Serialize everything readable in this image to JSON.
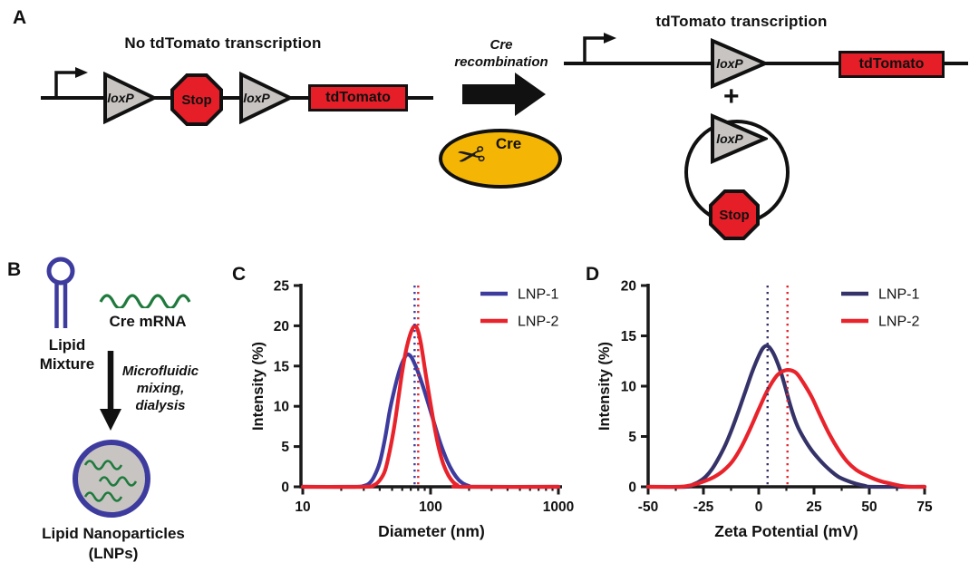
{
  "figure": {
    "panel_a": {
      "label": "A",
      "left_title": "No tdTomato transcription",
      "right_title": "tdTomato transcription",
      "cre_line1": "Cre",
      "cre_line2": "recombination",
      "cre_badge": "Cre",
      "loxp_label": "loxP",
      "stop_label": "Stop",
      "tdtomato_label": "tdTomato",
      "plus_sign": "+"
    },
    "panel_b": {
      "label": "B",
      "lipid_line1": "Lipid",
      "lipid_line2": "Mixture",
      "mrna_label": "Cre mRNA",
      "process_line1": "Microfluidic",
      "process_line2": "mixing,",
      "process_line3": "dialysis",
      "lnp_line1": "Lipid  Nanoparticles",
      "lnp_line2": "(LNPs)"
    },
    "panel_c": {
      "label": "C"
    },
    "panel_d": {
      "label": "D"
    }
  },
  "colors": {
    "axis": "#1a1a1a",
    "lnp1_c": "#3D3C9E",
    "lnp2_c": "#E8232B",
    "lnp1_d": "#343268",
    "lnp2_d": "#E8232B",
    "yellow": "#F4B505",
    "gray_fill": "#C8C4C2",
    "red_fill": "#E61E28",
    "green": "#1F7A3D",
    "lipid_blue": "#3D3C9E"
  },
  "chart_data": [
    {
      "panel": "C",
      "type": "line",
      "xlabel": "Diameter (nm)",
      "ylabel": "Intensity (%)",
      "x_scale": "log",
      "xlim": [
        10,
        1000
      ],
      "ylim": [
        0,
        25
      ],
      "y_ticks": [
        0,
        5,
        10,
        15,
        20,
        25
      ],
      "x_ticks": [
        10,
        100,
        1000
      ],
      "x_minor_ticks": [
        20,
        30,
        40,
        50,
        60,
        70,
        80,
        90,
        200,
        300,
        400,
        500,
        600,
        700,
        800,
        900
      ],
      "grid": false,
      "legend_position": "upper-right",
      "vlines": [
        {
          "x": 75,
          "color": "#3D3C9E",
          "style": "dotted"
        },
        {
          "x": 80,
          "color": "#E8232B",
          "style": "dotted"
        }
      ],
      "series": [
        {
          "name": "LNP-1",
          "color": "#3D3C9E",
          "points": [
            [
              10,
              0
            ],
            [
              25,
              0
            ],
            [
              30,
              0.1
            ],
            [
              33,
              0.4
            ],
            [
              36,
              1.2
            ],
            [
              40,
              3
            ],
            [
              44,
              6
            ],
            [
              48,
              9.5
            ],
            [
              52,
              12
            ],
            [
              56,
              14
            ],
            [
              60,
              15.4
            ],
            [
              65,
              16.4
            ],
            [
              70,
              16.2
            ],
            [
              75,
              15.3
            ],
            [
              80,
              14.2
            ],
            [
              85,
              13
            ],
            [
              90,
              11.8
            ],
            [
              100,
              9.4
            ],
            [
              110,
              7.2
            ],
            [
              120,
              5.3
            ],
            [
              135,
              3.2
            ],
            [
              150,
              1.8
            ],
            [
              165,
              0.9
            ],
            [
              180,
              0.4
            ],
            [
              200,
              0.1
            ],
            [
              220,
              0
            ],
            [
              1000,
              0
            ]
          ]
        },
        {
          "name": "LNP-2",
          "color": "#E8232B",
          "points": [
            [
              10,
              0
            ],
            [
              30,
              0
            ],
            [
              36,
              0.2
            ],
            [
              40,
              0.8
            ],
            [
              44,
              2
            ],
            [
              48,
              4.5
            ],
            [
              52,
              7.5
            ],
            [
              56,
              11
            ],
            [
              60,
              14.3
            ],
            [
              64,
              16.8
            ],
            [
              68,
              18.5
            ],
            [
              72,
              19.6
            ],
            [
              76,
              20
            ],
            [
              80,
              19.3
            ],
            [
              84,
              17.8
            ],
            [
              88,
              15.8
            ],
            [
              92,
              13.8
            ],
            [
              100,
              10.3
            ],
            [
              108,
              7.2
            ],
            [
              116,
              4.8
            ],
            [
              126,
              2.8
            ],
            [
              138,
              1.4
            ],
            [
              150,
              0.6
            ],
            [
              162,
              0.2
            ],
            [
              175,
              0
            ],
            [
              1000,
              0
            ]
          ]
        }
      ]
    },
    {
      "panel": "D",
      "type": "line",
      "xlabel": "Zeta Potential (mV)",
      "ylabel": "Intensity  (%)",
      "x_scale": "linear",
      "xlim": [
        -50,
        75
      ],
      "ylim": [
        0,
        20
      ],
      "y_ticks": [
        0,
        5,
        10,
        15,
        20
      ],
      "x_ticks": [
        -50,
        -25,
        0,
        25,
        50,
        75
      ],
      "x_minor_ticks": [
        -37.5,
        -12.5,
        12.5,
        37.5,
        62.5
      ],
      "grid": false,
      "legend_position": "upper-right",
      "vlines": [
        {
          "x": 4,
          "color": "#343268",
          "style": "dotted"
        },
        {
          "x": 13,
          "color": "#E8232B",
          "style": "dotted"
        }
      ],
      "series": [
        {
          "name": "LNP-1",
          "color": "#343268",
          "points": [
            [
              -50,
              0
            ],
            [
              -33,
              0
            ],
            [
              -30,
              0.2
            ],
            [
              -27,
              0.5
            ],
            [
              -24,
              1
            ],
            [
              -21,
              1.8
            ],
            [
              -18,
              2.9
            ],
            [
              -15,
              4.2
            ],
            [
              -12,
              5.8
            ],
            [
              -9,
              7.6
            ],
            [
              -6,
              9.5
            ],
            [
              -3,
              11.4
            ],
            [
              0,
              13
            ],
            [
              2,
              13.8
            ],
            [
              4,
              14
            ],
            [
              6,
              13.5
            ],
            [
              8,
              12.6
            ],
            [
              10,
              11.4
            ],
            [
              12,
              9.9
            ],
            [
              14,
              8.3
            ],
            [
              16,
              6.9
            ],
            [
              18,
              5.8
            ],
            [
              21,
              4.6
            ],
            [
              24,
              3.6
            ],
            [
              27,
              2.8
            ],
            [
              30,
              2.1
            ],
            [
              33,
              1.5
            ],
            [
              36,
              1
            ],
            [
              40,
              0.6
            ],
            [
              44,
              0.3
            ],
            [
              48,
              0.1
            ],
            [
              52,
              0
            ],
            [
              75,
              0
            ]
          ]
        },
        {
          "name": "LNP-2",
          "color": "#E8232B",
          "points": [
            [
              -50,
              0
            ],
            [
              -36,
              0
            ],
            [
              -32,
              0.1
            ],
            [
              -28,
              0.3
            ],
            [
              -24,
              0.6
            ],
            [
              -20,
              1
            ],
            [
              -16,
              1.6
            ],
            [
              -12,
              2.5
            ],
            [
              -8,
              3.9
            ],
            [
              -4,
              5.7
            ],
            [
              0,
              7.7
            ],
            [
              4,
              9.6
            ],
            [
              8,
              11
            ],
            [
              11,
              11.5
            ],
            [
              14,
              11.6
            ],
            [
              17,
              11.3
            ],
            [
              20,
              10.4
            ],
            [
              24,
              8.9
            ],
            [
              28,
              7
            ],
            [
              32,
              5.2
            ],
            [
              36,
              3.7
            ],
            [
              40,
              2.5
            ],
            [
              44,
              1.7
            ],
            [
              48,
              1.2
            ],
            [
              52,
              0.8
            ],
            [
              56,
              0.5
            ],
            [
              60,
              0.3
            ],
            [
              64,
              0.1
            ],
            [
              68,
              0
            ],
            [
              75,
              0
            ]
          ]
        }
      ]
    }
  ]
}
